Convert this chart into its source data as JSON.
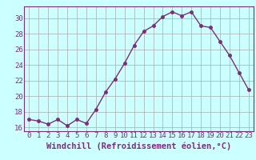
{
  "x": [
    0,
    1,
    2,
    3,
    4,
    5,
    6,
    7,
    8,
    9,
    10,
    11,
    12,
    13,
    14,
    15,
    16,
    17,
    18,
    19,
    20,
    21,
    22,
    23
  ],
  "y": [
    17.0,
    16.8,
    16.4,
    17.0,
    16.2,
    17.0,
    16.5,
    18.3,
    20.5,
    22.2,
    24.2,
    26.5,
    28.3,
    29.0,
    30.2,
    30.8,
    30.3,
    30.8,
    29.0,
    28.8,
    27.0,
    25.2,
    23.0,
    20.8
  ],
  "line_color": "#7b2f7b",
  "marker": "o",
  "marker_size": 2.5,
  "linewidth": 1.0,
  "bg_color": "#ccffff",
  "grid_color": "#aaaaaa",
  "xlabel": "Windchill (Refroidissement éolien,°C)",
  "xlabel_fontsize": 7.5,
  "tick_fontsize": 6.5,
  "ylim": [
    15.5,
    31.5
  ],
  "xlim": [
    -0.5,
    23.5
  ],
  "yticks": [
    16,
    18,
    20,
    22,
    24,
    26,
    28,
    30
  ],
  "xticks": [
    0,
    1,
    2,
    3,
    4,
    5,
    6,
    7,
    8,
    9,
    10,
    11,
    12,
    13,
    14,
    15,
    16,
    17,
    18,
    19,
    20,
    21,
    22,
    23
  ],
  "spine_color": "#7b2f7b"
}
